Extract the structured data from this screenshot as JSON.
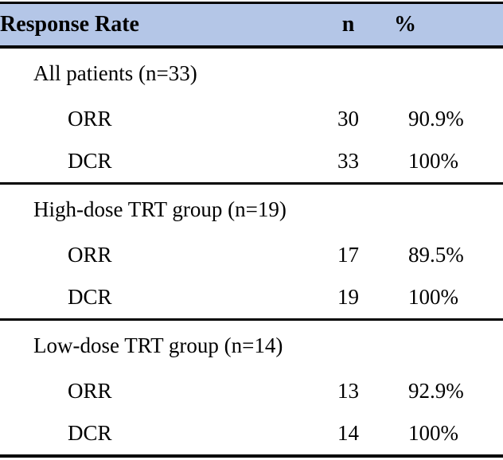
{
  "table": {
    "columns": [
      "Response Rate",
      "n",
      "%"
    ],
    "header_bg": "#B4C6E7",
    "border_color": "#000000",
    "sections": [
      {
        "title": "All patients (n=33)",
        "rows": [
          {
            "label": "ORR",
            "n": "30",
            "percent": "90.9%"
          },
          {
            "label": "DCR",
            "n": "33",
            "percent": "100%"
          }
        ]
      },
      {
        "title": "High-dose TRT group (n=19)",
        "rows": [
          {
            "label": "ORR",
            "n": "17",
            "percent": "89.5%"
          },
          {
            "label": "DCR",
            "n": "19",
            "percent": "100%"
          }
        ]
      },
      {
        "title": "Low-dose TRT group (n=14)",
        "rows": [
          {
            "label": "ORR",
            "n": "13",
            "percent": "92.9%"
          },
          {
            "label": "DCR",
            "n": "14",
            "percent": "100%"
          }
        ]
      }
    ]
  }
}
